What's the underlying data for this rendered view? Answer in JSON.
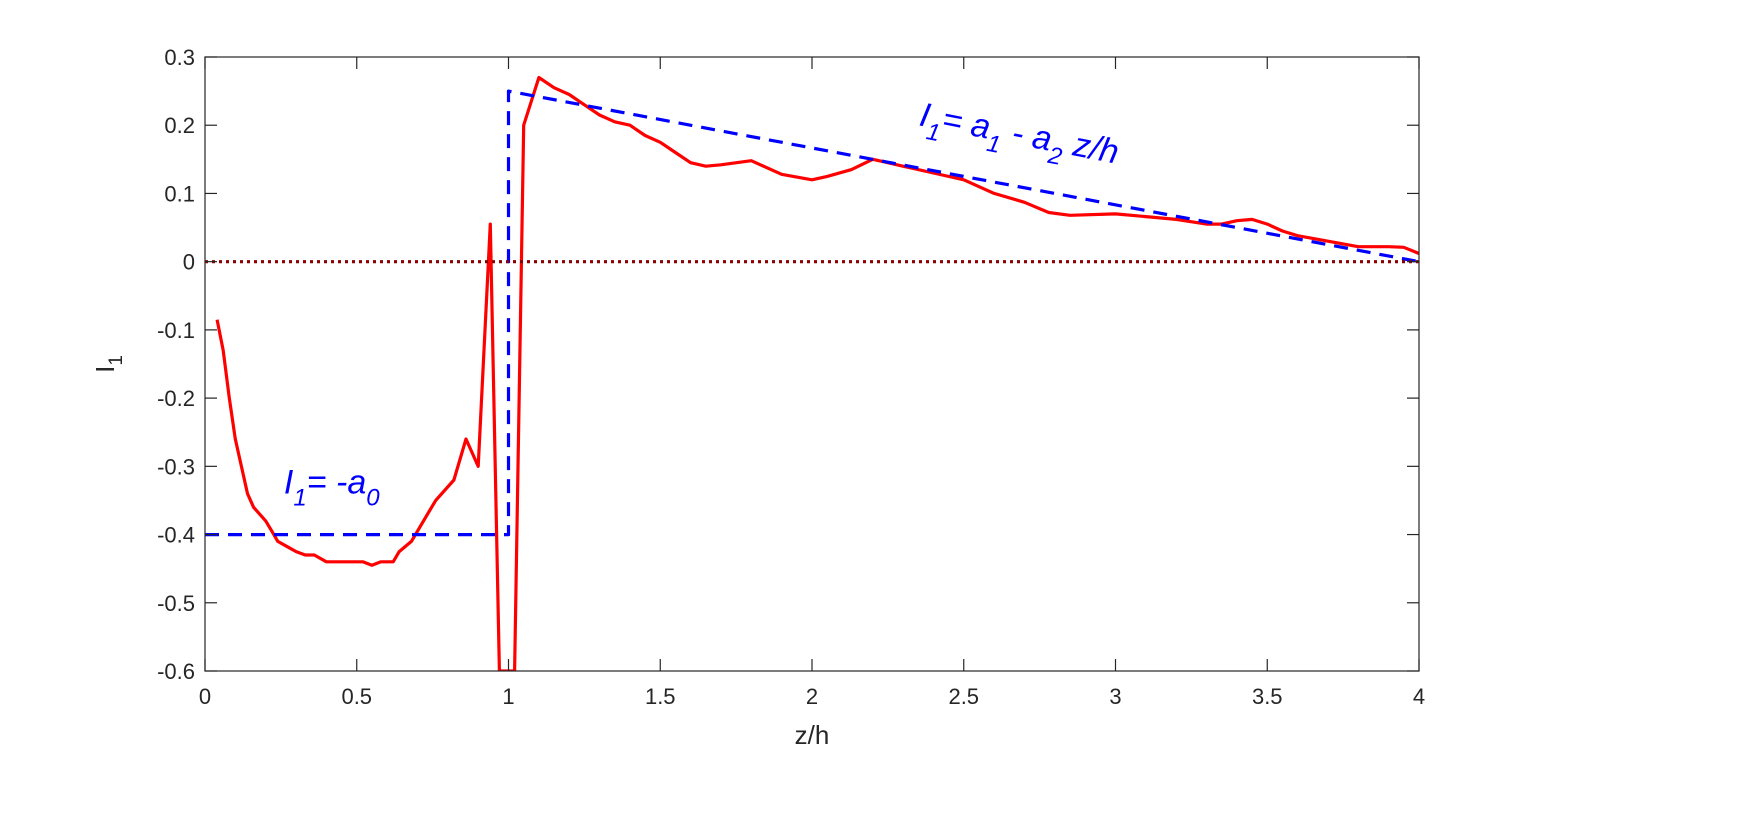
{
  "chart_data": {
    "type": "line",
    "title": "",
    "xlabel": "z/h",
    "ylabel": "I",
    "ylabel_subscript": "1",
    "xlim": [
      0,
      4
    ],
    "ylim": [
      -0.6,
      0.3
    ],
    "xticks": [
      0,
      0.5,
      1,
      1.5,
      2,
      2.5,
      3,
      3.5,
      4
    ],
    "xtick_labels": [
      "0",
      "0.5",
      "1",
      "1.5",
      "2",
      "2.5",
      "3",
      "3.5",
      "4"
    ],
    "yticks": [
      -0.6,
      -0.5,
      -0.4,
      -0.3,
      -0.2,
      -0.1,
      0,
      0.1,
      0.2,
      0.3
    ],
    "ytick_labels": [
      "-0.6",
      "-0.5",
      "-0.4",
      "-0.3",
      "-0.2",
      "-0.1",
      "0",
      "0.1",
      "0.2",
      "0.3"
    ],
    "grid": false,
    "series": [
      {
        "style": "solid",
        "color": "#ff0000",
        "x": [
          0.04,
          0.06,
          0.08,
          0.1,
          0.12,
          0.14,
          0.16,
          0.18,
          0.2,
          0.22,
          0.24,
          0.26,
          0.28,
          0.3,
          0.33,
          0.36,
          0.4,
          0.44,
          0.48,
          0.52,
          0.55,
          0.58,
          0.62,
          0.64,
          0.68,
          0.72,
          0.76,
          0.82,
          0.86,
          0.9,
          0.94,
          0.97,
          0.99,
          1.02,
          1.05,
          1.1,
          1.15,
          1.2,
          1.25,
          1.3,
          1.35,
          1.4,
          1.45,
          1.5,
          1.55,
          1.6,
          1.65,
          1.7,
          1.8,
          1.9,
          2.0,
          2.05,
          2.13,
          2.2,
          2.25,
          2.3,
          2.4,
          2.5,
          2.6,
          2.7,
          2.78,
          2.85,
          3.0,
          3.1,
          3.2,
          3.3,
          3.35,
          3.4,
          3.45,
          3.5,
          3.55,
          3.6,
          3.7,
          3.8,
          3.9,
          3.95,
          4.0
        ],
        "y": [
          -0.085,
          -0.13,
          -0.2,
          -0.26,
          -0.3,
          -0.34,
          -0.36,
          -0.37,
          -0.38,
          -0.395,
          -0.41,
          -0.415,
          -0.42,
          -0.425,
          -0.43,
          -0.43,
          -0.44,
          -0.44,
          -0.44,
          -0.44,
          -0.445,
          -0.44,
          -0.44,
          -0.425,
          -0.41,
          -0.38,
          -0.35,
          -0.32,
          -0.26,
          -0.3,
          0.055,
          -0.6,
          -0.6,
          -0.6,
          0.2,
          0.27,
          0.255,
          0.245,
          0.23,
          0.215,
          0.205,
          0.2,
          0.185,
          0.175,
          0.16,
          0.145,
          0.14,
          0.142,
          0.148,
          0.128,
          0.12,
          0.125,
          0.135,
          0.15,
          0.145,
          0.14,
          0.13,
          0.12,
          0.1,
          0.087,
          0.072,
          0.068,
          0.07,
          0.066,
          0.062,
          0.055,
          0.055,
          0.06,
          0.062,
          0.055,
          0.045,
          0.038,
          0.03,
          0.022,
          0.022,
          0.021,
          0.012
        ]
      },
      {
        "style": "dashed",
        "color": "#0000ff",
        "x": [
          0,
          1.0,
          1.0,
          4.0
        ],
        "y": [
          -0.4,
          -0.4,
          0.25,
          0.0
        ]
      },
      {
        "style": "dotted",
        "color": "#8b0000",
        "x": [
          0,
          4
        ],
        "y": [
          0,
          0
        ]
      }
    ],
    "annotations": [
      {
        "parts": [
          {
            "text": "I",
            "sub": false
          },
          {
            "text": "1",
            "sub": true
          },
          {
            "text": "= -a",
            "sub": false
          },
          {
            "text": "0",
            "sub": true
          }
        ],
        "x": 0.26,
        "y": -0.34,
        "rotation": 0,
        "color": "#0000ff"
      },
      {
        "parts": [
          {
            "text": "I",
            "sub": false
          },
          {
            "text": "1",
            "sub": true
          },
          {
            "text": "= a",
            "sub": false
          },
          {
            "text": "1",
            "sub": true
          },
          {
            "text": " - a",
            "sub": false
          },
          {
            "text": "2",
            "sub": true
          },
          {
            "text": " z/h",
            "sub": false
          }
        ],
        "x": 2.35,
        "y": 0.2,
        "rotation": 11,
        "color": "#0000ff"
      }
    ]
  }
}
